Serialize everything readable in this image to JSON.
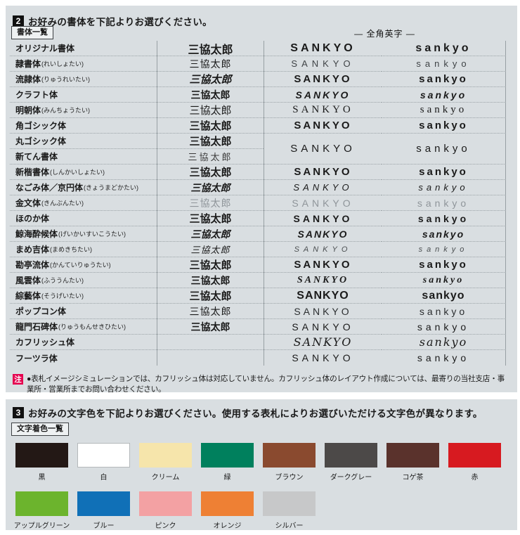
{
  "section2": {
    "num": "2",
    "title": "お好みの書体を下記よりお選びください。"
  },
  "section3": {
    "num": "3",
    "title": "お好みの文字色を下記よりお選びください。使用する表札によりお選びいただける文字色が異なります。"
  },
  "note": {
    "badge": "注",
    "badge_color": "#e5004f",
    "text": "●表札イメージシミュレーションでは、カフリッシュ体は対応していません。カフリッシュ体のレイアウト作成については、最寄りの当社支店・事業所・営業所までお問い合わせください。"
  },
  "font_table": {
    "label": "書体一覧",
    "fullwidth_header": "— 全角英字 —",
    "jp_sample": "三協太郎",
    "en_upper": "SANKYO",
    "en_lower": "sankyo",
    "rows": [
      {
        "name": "オリジナル書体",
        "reading": "",
        "style": "original",
        "jp": true,
        "en": "own"
      },
      {
        "name": "隷書体",
        "reading": "(れいしょたい)",
        "style": "reisho",
        "jp": true,
        "en": "own"
      },
      {
        "name": "流隷体",
        "reading": "(りゅうれいたい)",
        "style": "ryurei",
        "jp": true,
        "en": "own"
      },
      {
        "name": "クラフト体",
        "reading": "",
        "style": "craft",
        "jp": true,
        "en": "own"
      },
      {
        "name": "明朝体",
        "reading": "(みんちょうたい)",
        "style": "mincho",
        "jp": true,
        "en": "own"
      },
      {
        "name": "角ゴシック体",
        "reading": "",
        "style": "kakugo",
        "jp": true,
        "en": "own"
      },
      {
        "name": "丸ゴシック体",
        "reading": "",
        "style": "marugo",
        "jp": true,
        "en": "span2"
      },
      {
        "name": "新てん書体",
        "reading": "",
        "style": "shinten",
        "jp": true,
        "en": "none"
      },
      {
        "name": "新楷書体",
        "reading": "(しんかいしょたい)",
        "style": "shinkai",
        "jp": true,
        "en": "own"
      },
      {
        "name": "なごみ体／京円体",
        "reading": "(きょうまどかたい)",
        "style": "nagomi",
        "jp": true,
        "en": "own"
      },
      {
        "name": "金文体",
        "reading": "(きんぶんたい)",
        "style": "kinbun",
        "jp": true,
        "en": "own"
      },
      {
        "name": "ほのか体",
        "reading": "",
        "style": "honoka",
        "jp": true,
        "en": "own"
      },
      {
        "name": "鯨海酔候体",
        "reading": "(げいかいすいこうたい)",
        "style": "geikai",
        "jp": true,
        "en": "own"
      },
      {
        "name": "まめ吉体",
        "reading": "(まめきちたい)",
        "style": "mamekichi",
        "jp": true,
        "en": "own"
      },
      {
        "name": "勘亭流体",
        "reading": "(かんていりゅうたい)",
        "style": "kantei",
        "jp": true,
        "en": "own"
      },
      {
        "name": "風雲体",
        "reading": "(ふううんたい)",
        "style": "fuun",
        "jp": true,
        "en": "own"
      },
      {
        "name": "綜藝体",
        "reading": "(そうげいたい)",
        "style": "sogei",
        "jp": true,
        "en": "own"
      },
      {
        "name": "ポップコン体",
        "reading": "",
        "style": "popcon",
        "jp": true,
        "en": "own"
      },
      {
        "name": "龍門石碑体",
        "reading": "(りゅうもんせきひたい)",
        "style": "ryumon",
        "jp": true,
        "en": "own"
      },
      {
        "name": "カフリッシュ体",
        "reading": "",
        "style": "cuflish",
        "jp": false,
        "en": "own"
      },
      {
        "name": "フーツラ体",
        "reading": "",
        "style": "futura",
        "jp": false,
        "en": "own"
      }
    ]
  },
  "colors": {
    "label": "文字着色一覧",
    "swatches": [
      {
        "name": "黒",
        "hex": "#231815",
        "bordered": false
      },
      {
        "name": "白",
        "hex": "#ffffff",
        "bordered": true
      },
      {
        "name": "クリーム",
        "hex": "#f6e5ab",
        "bordered": false
      },
      {
        "name": "緑",
        "hex": "#00805d",
        "bordered": false
      },
      {
        "name": "ブラウン",
        "hex": "#8a4a2f",
        "bordered": false
      },
      {
        "name": "ダークグレー",
        "hex": "#4c4948",
        "bordered": false
      },
      {
        "name": "コゲ茶",
        "hex": "#5a322c",
        "bordered": false
      },
      {
        "name": "赤",
        "hex": "#d71a20",
        "bordered": false
      },
      {
        "name": "アップルグリーン",
        "hex": "#6cb42d",
        "bordered": false
      },
      {
        "name": "ブルー",
        "hex": "#1070b7",
        "bordered": false
      },
      {
        "name": "ピンク",
        "hex": "#f3a1a3",
        "bordered": false
      },
      {
        "name": "オレンジ",
        "hex": "#ee8034",
        "bordered": false
      },
      {
        "name": "シルバー",
        "hex": "#c7c8c9",
        "bordered": false
      }
    ]
  }
}
